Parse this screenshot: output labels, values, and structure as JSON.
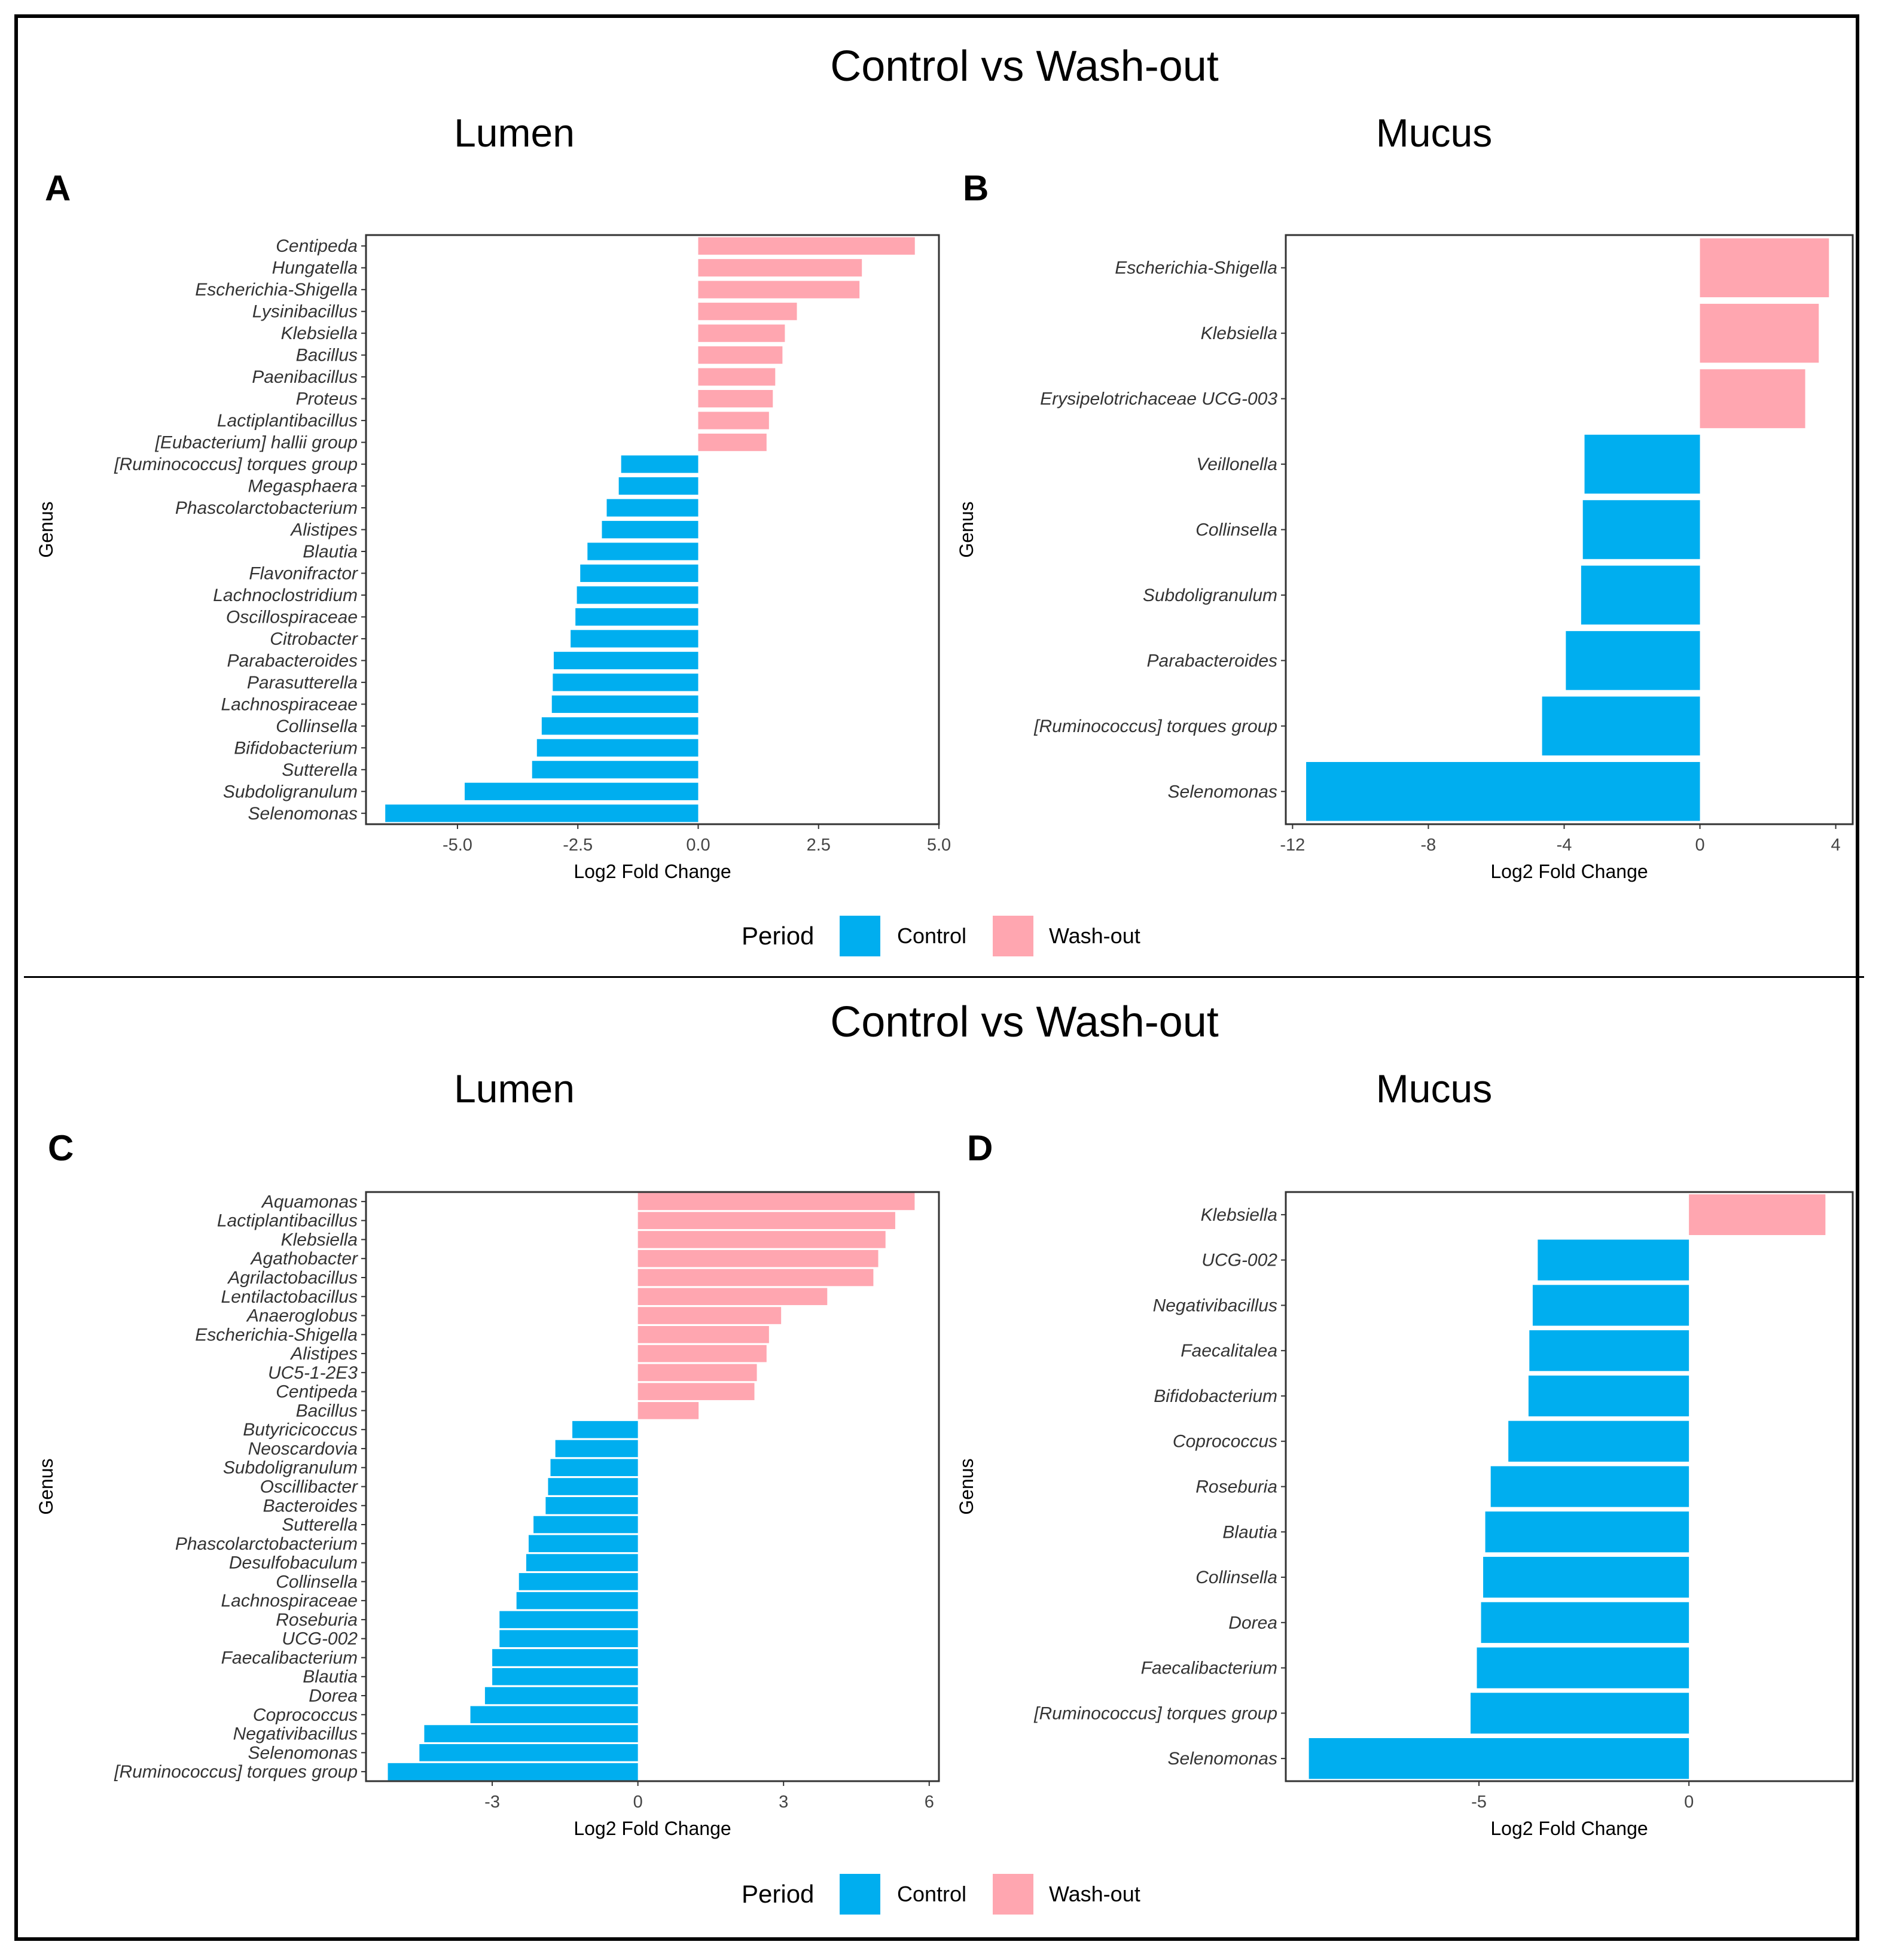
{
  "colors": {
    "control": "#00AEEF",
    "washout": "#FFA6B0"
  },
  "sections": [
    {
      "title": "Control vs Wash-out",
      "legend": {
        "title": "Period",
        "items": [
          {
            "label": "Control",
            "key": "control"
          },
          {
            "label": "Wash-out",
            "key": "washout"
          }
        ]
      }
    },
    {
      "title": "Control vs Wash-out",
      "legend": {
        "title": "Period",
        "items": [
          {
            "label": "Control",
            "key": "control"
          },
          {
            "label": "Wash-out",
            "key": "washout"
          }
        ]
      }
    }
  ],
  "chart_data": [
    {
      "panel": "A",
      "type": "bar",
      "orientation": "horizontal",
      "title": "Lumen",
      "xlabel": "Log2 Fold Change",
      "ylabel": "Genus",
      "xlim": [
        -6.9,
        5.0
      ],
      "xticks": [
        -5.0,
        -2.5,
        0.0,
        2.5,
        5.0
      ],
      "xtick_labels": [
        "-5.0",
        "-2.5",
        "0.0",
        "2.5",
        "5.0"
      ],
      "categories": [
        "Centipeda",
        "Hungatella",
        "Escherichia-Shigella",
        "Lysinibacillus",
        "Klebsiella",
        "Bacillus",
        "Paenibacillus",
        "Proteus",
        "Lactiplantibacillus",
        "[Eubacterium] hallii group",
        "[Ruminococcus] torques group",
        "Megasphaera",
        "Phascolarctobacterium",
        "Alistipes",
        "Blautia",
        "Flavonifractor",
        "Lachnoclostridium",
        "Oscillospiraceae",
        "Citrobacter",
        "Parabacteroides",
        "Parasutterella",
        "Lachnospiraceae",
        "Collinsella",
        "Bifidobacterium",
        "Sutterella",
        "Subdoligranulum",
        "Selenomonas"
      ],
      "values": [
        4.5,
        3.4,
        3.35,
        2.05,
        1.8,
        1.75,
        1.6,
        1.55,
        1.47,
        1.42,
        -1.6,
        -1.65,
        -1.9,
        -2.0,
        -2.3,
        -2.45,
        -2.52,
        -2.55,
        -2.65,
        -3.0,
        -3.02,
        -3.04,
        -3.25,
        -3.35,
        -3.45,
        -4.85,
        -6.5
      ],
      "series_by_sign": {
        "positive": "Wash-out",
        "negative": "Control"
      }
    },
    {
      "panel": "B",
      "type": "bar",
      "orientation": "horizontal",
      "title": "Mucus",
      "xlabel": "Log2 Fold Change",
      "ylabel": "Genus",
      "xlim": [
        -12.2,
        4.5
      ],
      "xticks": [
        -12,
        -8,
        -4,
        0,
        4
      ],
      "xtick_labels": [
        "-12",
        "-8",
        "-4",
        "0",
        "4"
      ],
      "categories": [
        "Escherichia-Shigella",
        "Klebsiella",
        "Erysipelotrichaceae UCG-003",
        "Veillonella",
        "Collinsella",
        "Subdoligranulum",
        "Parabacteroides",
        "[Ruminococcus] torques group",
        "Selenomonas"
      ],
      "values": [
        3.8,
        3.5,
        3.1,
        -3.4,
        -3.45,
        -3.5,
        -3.95,
        -4.65,
        -11.6
      ],
      "series_by_sign": {
        "positive": "Wash-out",
        "negative": "Control"
      }
    },
    {
      "panel": "C",
      "type": "bar",
      "orientation": "horizontal",
      "title": "Lumen",
      "xlabel": "Log2 Fold Change",
      "ylabel": "Genus",
      "xlim": [
        -5.6,
        6.2
      ],
      "xticks": [
        -3,
        0,
        3,
        6
      ],
      "xtick_labels": [
        "-3",
        "0",
        "3",
        "6"
      ],
      "categories": [
        "Aquamonas",
        "Lactiplantibacillus",
        "Klebsiella",
        "Agathobacter",
        "Agrilactobacillus",
        "Lentilactobacillus",
        "Anaeroglobus",
        "Escherichia-Shigella",
        "Alistipes",
        "UC5-1-2E3",
        "Centipeda",
        "Bacillus",
        "Butyricicoccus",
        "Neoscardovia",
        "Subdoligranulum",
        "Oscillibacter",
        "Bacteroides",
        "Sutterella",
        "Phascolarctobacterium",
        "Desulfobaculum",
        "Collinsella",
        "Lachnospiraceae",
        "Roseburia",
        "UCG-002",
        "Faecalibacterium",
        "Blautia",
        "Dorea",
        "Coprococcus",
        "Negativibacillus",
        "Selenomonas",
        "[Ruminococcus] torques group"
      ],
      "values": [
        5.7,
        5.3,
        5.1,
        4.95,
        4.85,
        3.9,
        2.95,
        2.7,
        2.65,
        2.45,
        2.4,
        1.25,
        -1.35,
        -1.7,
        -1.8,
        -1.85,
        -1.9,
        -2.15,
        -2.25,
        -2.3,
        -2.45,
        -2.5,
        -2.85,
        -2.85,
        -3.0,
        -3.0,
        -3.15,
        -3.45,
        -4.4,
        -4.5,
        -5.15
      ],
      "series_by_sign": {
        "positive": "Wash-out",
        "negative": "Control"
      }
    },
    {
      "panel": "D",
      "type": "bar",
      "orientation": "horizontal",
      "title": "Mucus",
      "xlabel": "Log2 Fold Change",
      "ylabel": "Genus",
      "xlim": [
        -9.6,
        3.9
      ],
      "xticks": [
        -5,
        0
      ],
      "xtick_labels": [
        "-5",
        "0"
      ],
      "categories": [
        "Klebsiella",
        "UCG-002",
        "Negativibacillus",
        "Faecalitalea",
        "Bifidobacterium",
        "Coprococcus",
        "Roseburia",
        "Blautia",
        "Collinsella",
        "Dorea",
        "Faecalibacterium",
        "[Ruminococcus] torques group",
        "Selenomonas"
      ],
      "values": [
        3.25,
        -3.6,
        -3.72,
        -3.8,
        -3.82,
        -4.3,
        -4.72,
        -4.85,
        -4.9,
        -4.95,
        -5.05,
        -5.2,
        -9.05
      ],
      "series_by_sign": {
        "positive": "Wash-out",
        "negative": "Control"
      }
    }
  ]
}
